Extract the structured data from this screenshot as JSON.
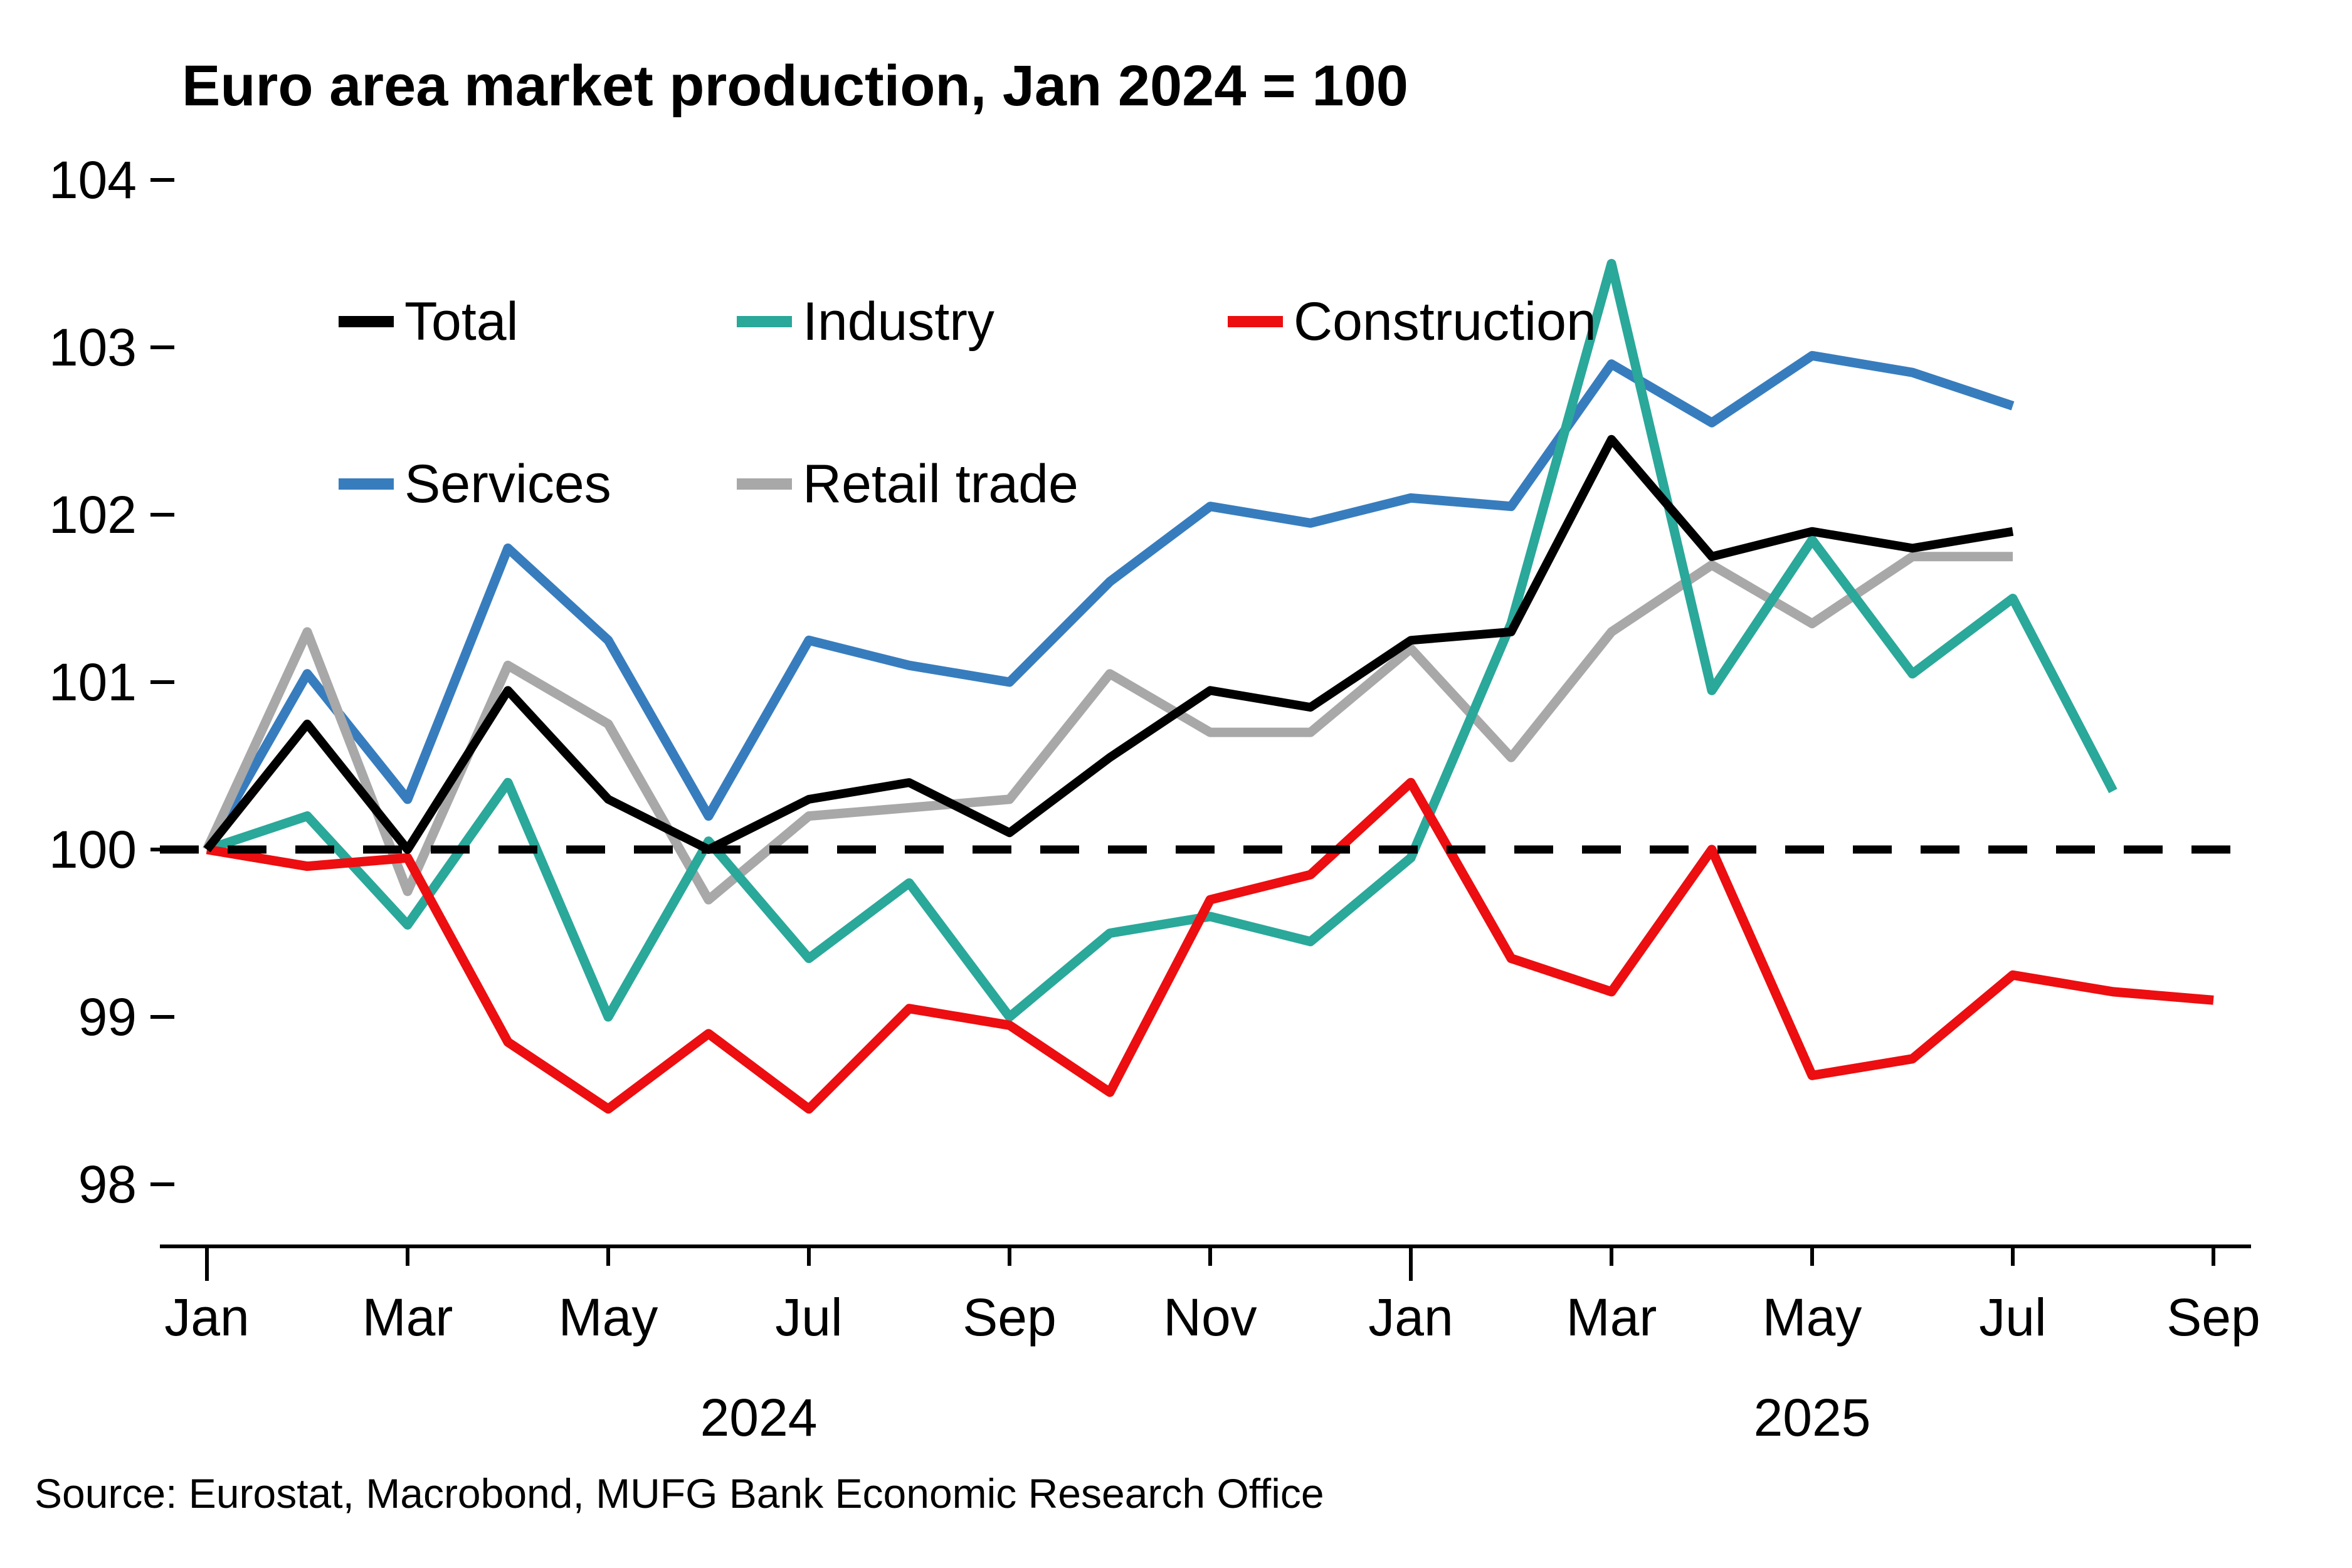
{
  "title": "Euro area market production, Jan 2024 = 100",
  "source": "Source: Eurostat, Macrobond, MUFG Bank Economic Research Office",
  "chart_data": {
    "type": "line",
    "title": "Euro area market production, Jan 2024 = 100",
    "xlabel": "",
    "ylabel": "",
    "ylim": [
      98,
      104
    ],
    "yticks": [
      98,
      99,
      100,
      101,
      102,
      103,
      104
    ],
    "grid": false,
    "baseline": 100,
    "legend_position": "top-left-inside",
    "x": [
      "Jan 2024",
      "Feb 2024",
      "Mar 2024",
      "Apr 2024",
      "May 2024",
      "Jun 2024",
      "Jul 2024",
      "Aug 2024",
      "Sep 2024",
      "Oct 2024",
      "Nov 2024",
      "Dec 2024",
      "Jan 2025",
      "Feb 2025",
      "Mar 2025",
      "Apr 2025",
      "May 2025",
      "Jun 2025",
      "Jul 2025",
      "Aug 2025",
      "Sep 2025"
    ],
    "x_tick_months": [
      0,
      2,
      4,
      6,
      8,
      10,
      12,
      14,
      16,
      18,
      20
    ],
    "x_tick_labels": [
      "Jan",
      "Mar",
      "May",
      "Jul",
      "Sep",
      "Nov",
      "Jan",
      "Mar",
      "May",
      "Jul",
      "Sep"
    ],
    "year_labels": [
      {
        "text": "2024",
        "month_index": 5.5
      },
      {
        "text": "2025",
        "month_index": 16.0
      }
    ],
    "series": [
      {
        "name": "Services",
        "color": "#377DBE",
        "values": [
          100.0,
          101.05,
          100.3,
          101.8,
          101.25,
          100.2,
          101.25,
          101.1,
          101.0,
          101.6,
          102.05,
          101.95,
          102.1,
          102.05,
          102.9,
          102.55,
          102.95,
          102.85,
          102.65,
          null,
          null
        ]
      },
      {
        "name": "Retail trade",
        "color": "#A8A8A8",
        "values": [
          100.0,
          101.3,
          99.75,
          101.1,
          100.75,
          99.7,
          100.2,
          100.25,
          100.3,
          101.05,
          100.7,
          100.7,
          101.2,
          100.55,
          101.3,
          101.7,
          101.35,
          101.75,
          101.75,
          null,
          null
        ]
      },
      {
        "name": "Industry",
        "color": "#2AA89A",
        "values": [
          100.0,
          100.2,
          99.55,
          100.4,
          99.0,
          100.05,
          99.35,
          99.8,
          99.0,
          99.5,
          99.6,
          99.45,
          99.95,
          101.35,
          103.5,
          100.95,
          101.85,
          101.05,
          101.5,
          100.35,
          null
        ]
      },
      {
        "name": "Construction",
        "color": "#EC0E10",
        "values": [
          100.0,
          99.9,
          99.95,
          98.85,
          98.45,
          98.9,
          98.45,
          99.05,
          98.95,
          98.55,
          99.7,
          99.85,
          100.4,
          99.35,
          99.15,
          100.0,
          98.65,
          98.75,
          99.25,
          99.15,
          99.1
        ]
      },
      {
        "name": "Total",
        "color": "#000000",
        "values": [
          100.0,
          100.75,
          100.0,
          100.95,
          100.3,
          100.0,
          100.3,
          100.4,
          100.1,
          100.55,
          100.95,
          100.85,
          101.25,
          101.3,
          102.45,
          101.75,
          101.9,
          101.8,
          101.9,
          null,
          null
        ]
      }
    ],
    "legend_rows": [
      [
        "Total",
        "Industry",
        "Construction"
      ],
      [
        "Services",
        "Retail trade"
      ]
    ]
  }
}
